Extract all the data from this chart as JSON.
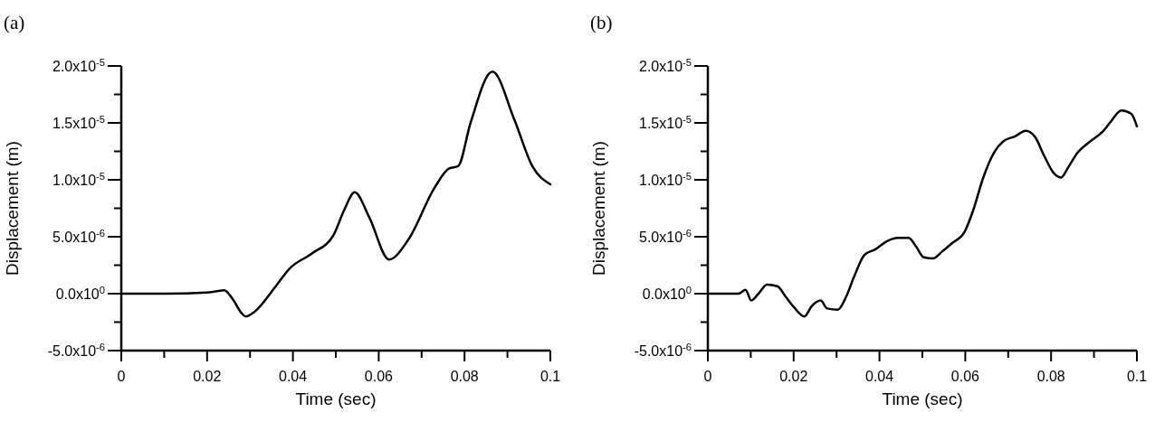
{
  "chart_data": [
    {
      "type": "line",
      "title": "(a)",
      "xlabel": "Time (sec)",
      "ylabel": "Displacement (m)",
      "color": "#000000",
      "x": [
        0,
        0.01,
        0.02,
        0.022,
        0.024,
        0.026,
        0.028,
        0.029,
        0.031,
        0.0359,
        0.0392,
        0.0443,
        0.0494,
        0.0519,
        0.0544,
        0.0578,
        0.0624,
        0.067,
        0.073,
        0.0764,
        0.0785,
        0.0814,
        0.0865,
        0.0916,
        0.0958,
        0.1
      ],
      "values": [
        0,
        0,
        1e-07,
        2e-07,
        3e-07,
        -5e-07,
        -1.7e-06,
        -2e-06,
        -1.6e-06,
        6e-07,
        2.2e-06,
        3.5e-06,
        5.1e-06,
        7.3e-06,
        8.9e-06,
        6.7e-06,
        3e-06,
        4.8e-06,
        9.3e-06,
        1.1e-05,
        1.12e-05,
        1.5e-05,
        1.95e-05,
        1.53e-05,
        1.12e-05,
        9.6e-06
      ],
      "xlim": [
        0,
        0.1
      ],
      "ylim": [
        -5e-06,
        2e-05
      ],
      "xticks": [
        0,
        {
          "value": 0.01,
          "label": null
        },
        0.02,
        {
          "value": 0.03,
          "label": null
        },
        0.04,
        {
          "value": 0.05,
          "label": null
        },
        0.06,
        {
          "value": 0.07,
          "label": null
        },
        0.08,
        {
          "value": 0.09,
          "label": null
        },
        0.1
      ],
      "yticks": [
        {
          "value": -5e-06,
          "label": "-5.0x10$^{-6}$"
        },
        {
          "value": -2.5e-06,
          "label": null
        },
        {
          "value": 0,
          "label": "0.0x10$^{0}$"
        },
        {
          "value": 2.5e-06,
          "label": null
        },
        {
          "value": 5e-06,
          "label": "5.0x10$^{-6}$"
        },
        {
          "value": 7.5e-06,
          "label": null
        },
        {
          "value": 1e-05,
          "label": "1.0x10$^{-5}$"
        },
        {
          "value": 1.25e-05,
          "label": null
        },
        {
          "value": 1.5e-05,
          "label": "1.5x10$^{-5}$"
        },
        {
          "value": 1.75e-05,
          "label": null
        },
        {
          "value": 2e-05,
          "label": "2.0x10$^{-5}$"
        }
      ]
    },
    {
      "type": "line",
      "title": "(b)",
      "xlabel": "Time (sec)",
      "ylabel": "Displacement (m)",
      "color": "#000000",
      "x": [
        0,
        0.0071,
        0.0088,
        0.0101,
        0.0118,
        0.0138,
        0.0162,
        0.0182,
        0.0201,
        0.0225,
        0.0242,
        0.0263,
        0.0278,
        0.0303,
        0.0322,
        0.0341,
        0.0365,
        0.0391,
        0.0417,
        0.0443,
        0.0468,
        0.0486,
        0.0503,
        0.0525,
        0.0546,
        0.0568,
        0.0598,
        0.062,
        0.0641,
        0.0667,
        0.0689,
        0.0715,
        0.0741,
        0.0762,
        0.0784,
        0.0806,
        0.0823,
        0.084,
        0.0862,
        0.0892,
        0.0922,
        0.0939,
        0.0964,
        0.0987,
        0.1
      ],
      "values": [
        0,
        0,
        3.3e-07,
        -6e-07,
        0,
        8e-07,
        6.5e-07,
        -3e-07,
        -1.2e-06,
        -2e-06,
        -1.1e-06,
        -6e-07,
        -1.3e-06,
        -1.4e-06,
        -3e-07,
        1.5e-06,
        3.4e-06,
        3.9e-06,
        4.6e-06,
        4.9e-06,
        4.9e-06,
        4.1e-06,
        3.2e-06,
        3.1e-06,
        3.7e-06,
        4.4e-06,
        5.4e-06,
        7.5e-06,
        1.01e-05,
        1.24e-05,
        1.34e-05,
        1.38e-05,
        1.43e-05,
        1.38e-05,
        1.21e-05,
        1.06e-05,
        1.02e-05,
        1.11e-05,
        1.24e-05,
        1.34e-05,
        1.43e-05,
        1.51e-05,
        1.61e-05,
        1.58e-05,
        1.47e-05
      ],
      "xlim": [
        0,
        0.1
      ],
      "ylim": [
        -5e-06,
        2e-05
      ],
      "xticks": [
        0,
        {
          "value": 0.01,
          "label": null
        },
        0.02,
        {
          "value": 0.03,
          "label": null
        },
        0.04,
        {
          "value": 0.05,
          "label": null
        },
        0.06,
        {
          "value": 0.07,
          "label": null
        },
        0.08,
        {
          "value": 0.09,
          "label": null
        },
        0.1
      ],
      "yticks": [
        {
          "value": -5e-06,
          "label": "-5.0x10$^{-6}$"
        },
        {
          "value": -2.5e-06,
          "label": null
        },
        {
          "value": 0,
          "label": "0.0x10$^{0}$"
        },
        {
          "value": 2.5e-06,
          "label": null
        },
        {
          "value": 5e-06,
          "label": "5.0x10$^{-6}$"
        },
        {
          "value": 7.5e-06,
          "label": null
        },
        {
          "value": 1e-05,
          "label": "1.0x10$^{-5}$"
        },
        {
          "value": 1.25e-05,
          "label": null
        },
        {
          "value": 1.5e-05,
          "label": "1.5x10$^{-5}$"
        },
        {
          "value": 1.75e-05,
          "label": null
        },
        {
          "value": 2e-05,
          "label": "2.0x10$^{-5}$"
        }
      ]
    }
  ]
}
